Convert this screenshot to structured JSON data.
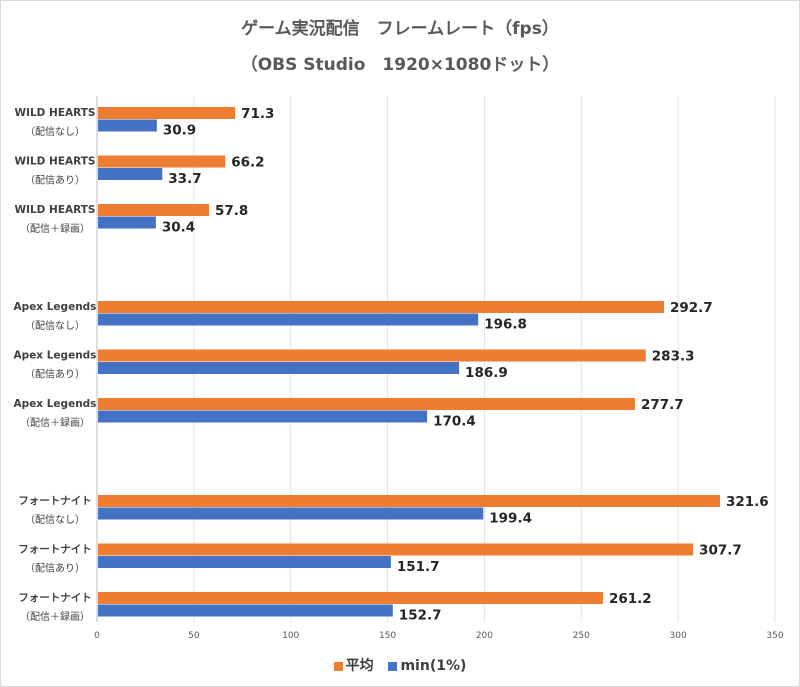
{
  "chart_data": {
    "type": "bar",
    "orientation": "horizontal",
    "title": "ゲーム実況配信　フレームレート（fps）",
    "subtitle": "（OBS Studio　1920×1080ドット）",
    "xlabel": "",
    "ylabel": "",
    "xlim": [
      0,
      350
    ],
    "xticks": [
      0,
      50,
      100,
      150,
      200,
      250,
      300,
      350
    ],
    "grid": true,
    "legend_position": "bottom",
    "groups": [
      {
        "game": "WILD HEARTS",
        "categories": [
          {
            "line1": "WILD HEARTS",
            "line2": "（配信なし）",
            "avg": 71.3,
            "min1": 30.9
          },
          {
            "line1": "WILD HEARTS",
            "line2": "（配信あり）",
            "avg": 66.2,
            "min1": 33.7
          },
          {
            "line1": "WILD HEARTS",
            "line2": "（配信＋録画）",
            "avg": 57.8,
            "min1": 30.4
          }
        ]
      },
      {
        "game": "Apex Legends",
        "categories": [
          {
            "line1": "Apex Legends",
            "line2": "（配信なし）",
            "avg": 292.7,
            "min1": 196.8
          },
          {
            "line1": "Apex Legends",
            "line2": "（配信あり）",
            "avg": 283.3,
            "min1": 186.9
          },
          {
            "line1": "Apex Legends",
            "line2": "（配信＋録画）",
            "avg": 277.7,
            "min1": 170.4
          }
        ]
      },
      {
        "game": "フォートナイト",
        "categories": [
          {
            "line1": "フォートナイト",
            "line2": "（配信なし）",
            "avg": 321.6,
            "min1": 199.4
          },
          {
            "line1": "フォートナイト",
            "line2": "（配信あり）",
            "avg": 307.7,
            "min1": 151.7
          },
          {
            "line1": "フォートナイト",
            "line2": "（配信＋録画）",
            "avg": 261.2,
            "min1": 152.7
          }
        ]
      }
    ],
    "series": [
      {
        "name": "平均",
        "key": "avg",
        "color": "#ED7D31"
      },
      {
        "name": "min(1%)",
        "key": "min1",
        "color": "#4472C4"
      }
    ]
  }
}
